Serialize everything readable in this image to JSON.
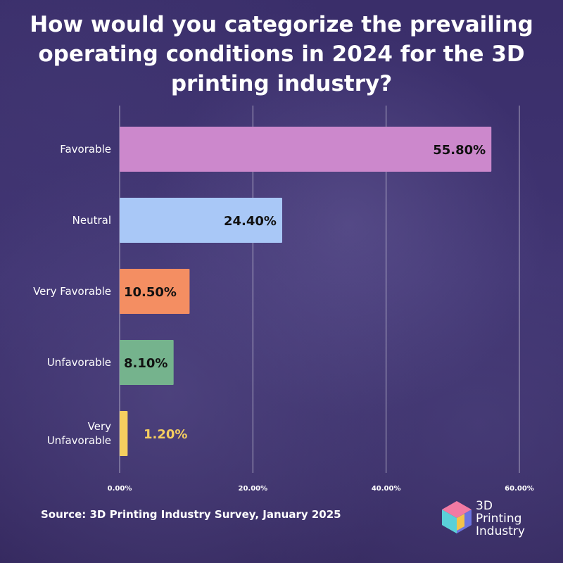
{
  "title": "How would you categorize the prevailing operating conditions in 2024 for the 3D printing industry?",
  "source": "Source: 3D Printing Industry Survey, January 2025",
  "logo": {
    "line1": "3D",
    "line2": "Printing",
    "line3": "Industry"
  },
  "chart_data": {
    "type": "bar",
    "orientation": "horizontal",
    "categories": [
      "Favorable",
      "Neutral",
      "Very Favorable",
      "Unfavorable",
      "Very Unfavorable"
    ],
    "category_lines": [
      [
        "Favorable"
      ],
      [
        "Neutral"
      ],
      [
        "Very Favorable"
      ],
      [
        "Unfavorable"
      ],
      [
        "Very",
        "Unfavorable"
      ]
    ],
    "values": [
      55.8,
      24.4,
      10.5,
      8.1,
      1.2
    ],
    "value_labels": [
      "55.80%",
      "24.40%",
      "10.50%",
      "8.10%",
      "1.20%"
    ],
    "colors": [
      "#cc88cc",
      "#a9c8f7",
      "#f48e62",
      "#75b38d",
      "#f5ce5f"
    ],
    "label_colors": [
      "#111111",
      "#111111",
      "#111111",
      "#111111",
      "#f5ce5f"
    ],
    "xlim": [
      0,
      60
    ],
    "xticks": [
      "0.00%",
      "20.00%",
      "40.00%",
      "60.00%"
    ],
    "xtick_values": [
      0,
      20,
      40,
      60
    ],
    "grid": true,
    "title": "How would you categorize the prevailing operating conditions in 2024 for the 3D printing industry?"
  }
}
